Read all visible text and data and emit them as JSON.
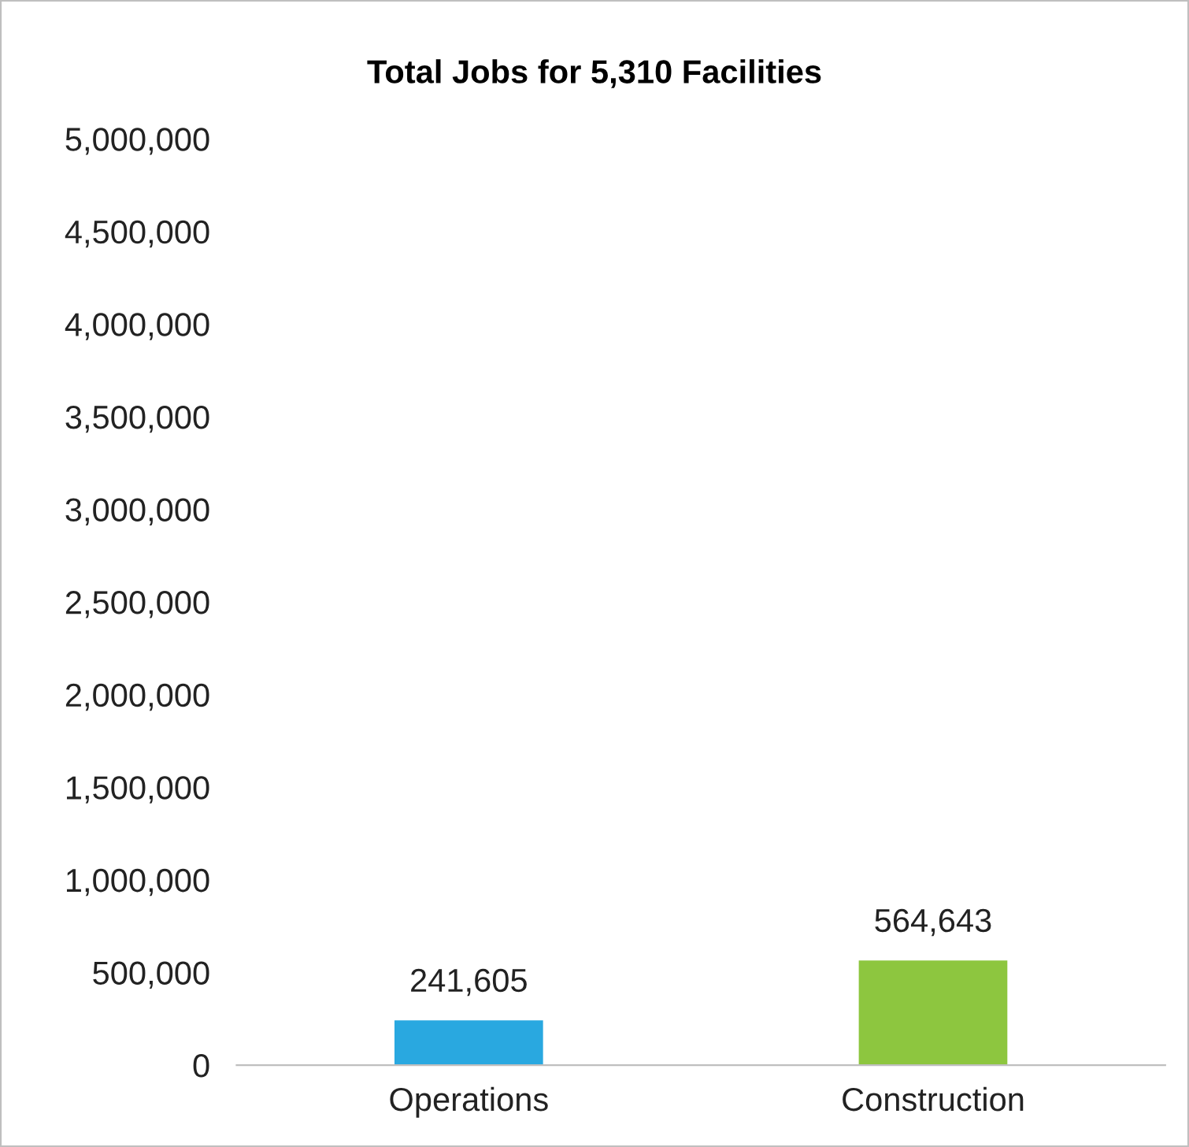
{
  "chart_data": {
    "type": "bar",
    "title": "Total Jobs for 5,310 Facilities",
    "categories": [
      "Operations",
      "Construction"
    ],
    "values": [
      241605,
      564643
    ],
    "colors": [
      "#29a8e0",
      "#8dc63f"
    ],
    "ylim": [
      0,
      5000000
    ],
    "yticks": [
      {
        "value": 0,
        "label": "0"
      },
      {
        "value": 500000,
        "label": "500,000"
      },
      {
        "value": 1000000,
        "label": "1,000,000"
      },
      {
        "value": 1500000,
        "label": "1,500,000"
      },
      {
        "value": 2000000,
        "label": "2,000,000"
      },
      {
        "value": 2500000,
        "label": "2,500,000"
      },
      {
        "value": 3000000,
        "label": "3,000,000"
      },
      {
        "value": 3500000,
        "label": "3,500,000"
      },
      {
        "value": 4000000,
        "label": "4,000,000"
      },
      {
        "value": 4500000,
        "label": "4,500,000"
      },
      {
        "value": 5000000,
        "label": "5,000,000"
      }
    ],
    "value_labels": [
      "241,605",
      "564,643"
    ],
    "grid": false,
    "legend": false
  }
}
